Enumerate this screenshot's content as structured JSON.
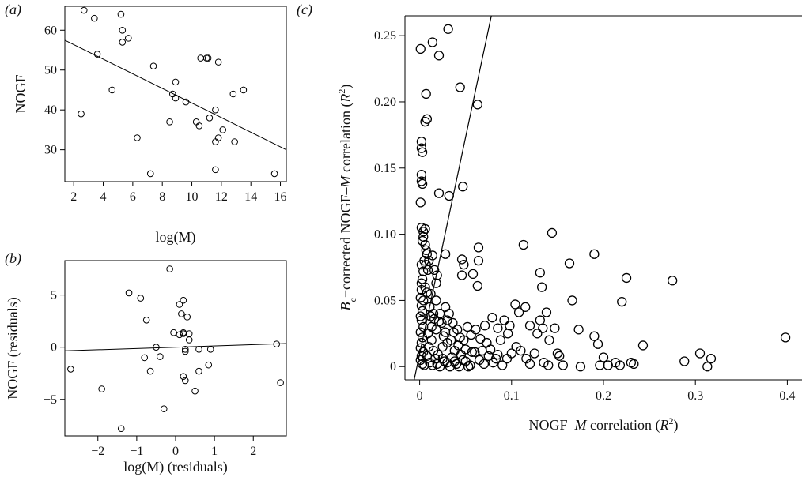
{
  "figure": {
    "panel_labels": {
      "a": "(a)",
      "b": "(b)",
      "c": "(c)"
    }
  },
  "chart_data": [
    {
      "id": "a",
      "type": "scatter",
      "xlabel": "log(M)",
      "ylabel": "NOGF",
      "xlim": [
        1.4,
        16.4
      ],
      "ylim": [
        22,
        66
      ],
      "xticks": [
        2,
        4,
        6,
        8,
        10,
        12,
        14,
        16
      ],
      "yticks": [
        30,
        40,
        50,
        60
      ],
      "grid": false,
      "points": [
        [
          2.7,
          65
        ],
        [
          3.4,
          63
        ],
        [
          3.6,
          54
        ],
        [
          2.5,
          39
        ],
        [
          4.6,
          45
        ],
        [
          5.2,
          64
        ],
        [
          5.3,
          60
        ],
        [
          5.3,
          57
        ],
        [
          5.7,
          58
        ],
        [
          6.3,
          33
        ],
        [
          7.2,
          24
        ],
        [
          7.4,
          51
        ],
        [
          8.5,
          37
        ],
        [
          8.7,
          44
        ],
        [
          8.9,
          47
        ],
        [
          8.9,
          43
        ],
        [
          9.6,
          42
        ],
        [
          10.3,
          37
        ],
        [
          10.5,
          36
        ],
        [
          10.6,
          53
        ],
        [
          11.0,
          53
        ],
        [
          11.1,
          53
        ],
        [
          11.2,
          38
        ],
        [
          11.6,
          40
        ],
        [
          11.6,
          32
        ],
        [
          11.8,
          33
        ],
        [
          11.8,
          52
        ],
        [
          12.1,
          35
        ],
        [
          11.6,
          25
        ],
        [
          12.8,
          44
        ],
        [
          12.9,
          32
        ],
        [
          13.5,
          45
        ],
        [
          15.6,
          24
        ]
      ],
      "fit_line": {
        "x": [
          1.4,
          16.4
        ],
        "y": [
          57.5,
          30.0
        ]
      }
    },
    {
      "id": "b",
      "type": "scatter",
      "xlabel": "log(M) (residuals)",
      "ylabel": "NOGF (residuals)",
      "xlim": [
        -2.85,
        2.85
      ],
      "ylim": [
        -8.5,
        8.3
      ],
      "xticks": [
        -2,
        -1,
        0,
        1,
        2
      ],
      "xtick_labels": [
        "−2",
        "−1",
        "0",
        "1",
        "2"
      ],
      "yticks": [
        -5,
        0,
        5
      ],
      "ytick_labels": [
        "−5",
        "0",
        "5"
      ],
      "grid": false,
      "points": [
        [
          -2.7,
          -2.1
        ],
        [
          -1.9,
          -4.0
        ],
        [
          -1.4,
          -7.8
        ],
        [
          -1.2,
          5.2
        ],
        [
          -0.9,
          4.7
        ],
        [
          -0.75,
          2.6
        ],
        [
          -0.8,
          -1.0
        ],
        [
          -0.65,
          -2.3
        ],
        [
          -0.4,
          -0.9
        ],
        [
          -0.5,
          0.0
        ],
        [
          -0.3,
          -5.9
        ],
        [
          -0.15,
          7.5
        ],
        [
          -0.05,
          1.4
        ],
        [
          0.1,
          1.2
        ],
        [
          0.1,
          4.1
        ],
        [
          0.15,
          3.2
        ],
        [
          0.2,
          1.4
        ],
        [
          0.2,
          4.5
        ],
        [
          0.2,
          1.3
        ],
        [
          0.25,
          -0.4
        ],
        [
          0.25,
          -0.2
        ],
        [
          0.2,
          -2.8
        ],
        [
          0.25,
          -3.2
        ],
        [
          0.3,
          2.9
        ],
        [
          0.35,
          0.7
        ],
        [
          0.35,
          1.3
        ],
        [
          0.5,
          -4.2
        ],
        [
          0.6,
          -2.3
        ],
        [
          0.6,
          -0.2
        ],
        [
          0.85,
          -1.7
        ],
        [
          0.9,
          -0.2
        ],
        [
          2.6,
          0.3
        ],
        [
          2.7,
          -3.4
        ]
      ],
      "fit_line": {
        "x": [
          -2.85,
          2.85
        ],
        "y": [
          -0.35,
          0.35
        ]
      }
    },
    {
      "id": "c",
      "type": "scatter",
      "xlabel_parts": [
        "NOGF–",
        "M",
        " correlation (",
        "R",
        "2",
        ")"
      ],
      "ylabel_parts": [
        "B",
        "c",
        "−corrected NOGF–",
        "M",
        " correlation (",
        "R",
        "2",
        ")"
      ],
      "xlim": [
        -0.016,
        0.416
      ],
      "ylim": [
        -0.01,
        0.265
      ],
      "xticks": [
        0,
        0.1,
        0.2,
        0.3,
        0.4
      ],
      "xtick_labels": [
        "0",
        "0.1",
        "0.2",
        "0.3",
        "0.4"
      ],
      "yticks": [
        0,
        0.05,
        0.1,
        0.15,
        0.2,
        0.25
      ],
      "ytick_labels": [
        "0",
        "0.05",
        "0.10",
        "0.15",
        "0.20",
        "0.25"
      ],
      "grid": false,
      "identity_line": {
        "x": [
          -0.006,
          0.078
        ],
        "y": [
          -0.01,
          0.265
        ]
      },
      "points": [
        [
          0.001,
          0.24
        ],
        [
          0.002,
          0.17
        ],
        [
          0.002,
          0.165
        ],
        [
          0.003,
          0.162
        ],
        [
          0.002,
          0.145
        ],
        [
          0.002,
          0.14
        ],
        [
          0.003,
          0.138
        ],
        [
          0.001,
          0.124
        ],
        [
          0.002,
          0.105
        ],
        [
          0.004,
          0.102
        ],
        [
          0.006,
          0.104
        ],
        [
          0.004,
          0.098
        ],
        [
          0.003,
          0.095
        ],
        [
          0.006,
          0.092
        ],
        [
          0.007,
          0.088
        ],
        [
          0.008,
          0.085
        ],
        [
          0.005,
          0.08
        ],
        [
          0.007,
          0.077
        ],
        [
          0.002,
          0.077
        ],
        [
          0.004,
          0.072
        ],
        [
          0.01,
          0.08
        ],
        [
          0.009,
          0.073
        ],
        [
          0.003,
          0.066
        ],
        [
          0.002,
          0.063
        ],
        [
          0.006,
          0.06
        ],
        [
          0.002,
          0.058
        ],
        [
          0.008,
          0.056
        ],
        [
          0.001,
          0.052
        ],
        [
          0.004,
          0.05
        ],
        [
          0.002,
          0.046
        ],
        [
          0.003,
          0.042
        ],
        [
          0.001,
          0.038
        ],
        [
          0.002,
          0.035
        ],
        [
          0.004,
          0.03
        ],
        [
          0.001,
          0.026
        ],
        [
          0.003,
          0.022
        ],
        [
          0.002,
          0.018
        ],
        [
          0.001,
          0.014
        ],
        [
          0.004,
          0.011
        ],
        [
          0.002,
          0.008
        ],
        [
          0.001,
          0.005
        ],
        [
          0.003,
          0.002
        ],
        [
          0.005,
          0.001
        ],
        [
          0.006,
          0.185
        ],
        [
          0.008,
          0.187
        ],
        [
          0.007,
          0.206
        ],
        [
          0.014,
          0.245
        ],
        [
          0.021,
          0.235
        ],
        [
          0.031,
          0.255
        ],
        [
          0.044,
          0.211
        ],
        [
          0.021,
          0.131
        ],
        [
          0.032,
          0.129
        ],
        [
          0.047,
          0.136
        ],
        [
          0.063,
          0.198
        ],
        [
          0.014,
          0.084
        ],
        [
          0.028,
          0.085
        ],
        [
          0.016,
          0.073
        ],
        [
          0.019,
          0.069
        ],
        [
          0.018,
          0.063
        ],
        [
          0.046,
          0.081
        ],
        [
          0.048,
          0.077
        ],
        [
          0.046,
          0.069
        ],
        [
          0.064,
          0.09
        ],
        [
          0.064,
          0.08
        ],
        [
          0.058,
          0.07
        ],
        [
          0.063,
          0.061
        ],
        [
          0.012,
          0.055
        ],
        [
          0.018,
          0.05
        ],
        [
          0.011,
          0.045
        ],
        [
          0.022,
          0.04
        ],
        [
          0.016,
          0.036
        ],
        [
          0.021,
          0.034
        ],
        [
          0.024,
          0.033
        ],
        [
          0.013,
          0.03
        ],
        [
          0.018,
          0.028
        ],
        [
          0.028,
          0.026
        ],
        [
          0.032,
          0.04
        ],
        [
          0.036,
          0.033
        ],
        [
          0.041,
          0.028
        ],
        [
          0.044,
          0.022
        ],
        [
          0.048,
          0.02
        ],
        [
          0.052,
          0.03
        ],
        [
          0.056,
          0.024
        ],
        [
          0.061,
          0.028
        ],
        [
          0.066,
          0.021
        ],
        [
          0.073,
          0.018
        ],
        [
          0.071,
          0.031
        ],
        [
          0.079,
          0.037
        ],
        [
          0.085,
          0.029
        ],
        [
          0.092,
          0.035
        ],
        [
          0.098,
          0.031
        ],
        [
          0.104,
          0.047
        ],
        [
          0.108,
          0.041
        ],
        [
          0.096,
          0.025
        ],
        [
          0.088,
          0.02
        ],
        [
          0.113,
          0.092
        ],
        [
          0.115,
          0.045
        ],
        [
          0.12,
          0.031
        ],
        [
          0.128,
          0.025
        ],
        [
          0.131,
          0.071
        ],
        [
          0.133,
          0.06
        ],
        [
          0.131,
          0.035
        ],
        [
          0.134,
          0.029
        ],
        [
          0.138,
          0.041
        ],
        [
          0.141,
          0.02
        ],
        [
          0.144,
          0.101
        ],
        [
          0.147,
          0.029
        ],
        [
          0.15,
          0.01
        ],
        [
          0.152,
          0.008
        ],
        [
          0.163,
          0.078
        ],
        [
          0.166,
          0.05
        ],
        [
          0.173,
          0.028
        ],
        [
          0.19,
          0.085
        ],
        [
          0.19,
          0.023
        ],
        [
          0.194,
          0.017
        ],
        [
          0.22,
          0.049
        ],
        [
          0.225,
          0.067
        ],
        [
          0.243,
          0.016
        ],
        [
          0.275,
          0.065
        ],
        [
          0.288,
          0.004
        ],
        [
          0.305,
          0.01
        ],
        [
          0.317,
          0.006
        ],
        [
          0.313,
          0.0
        ],
        [
          0.398,
          0.022
        ],
        [
          0.015,
          0.012
        ],
        [
          0.02,
          0.009
        ],
        [
          0.025,
          0.006
        ],
        [
          0.03,
          0.003
        ],
        [
          0.035,
          0.007
        ],
        [
          0.04,
          0.002
        ],
        [
          0.045,
          0.009
        ],
        [
          0.05,
          0.004
        ],
        [
          0.055,
          0.001
        ],
        [
          0.06,
          0.011
        ],
        [
          0.065,
          0.005
        ],
        [
          0.07,
          0.002
        ],
        [
          0.075,
          0.008
        ],
        [
          0.08,
          0.003
        ],
        [
          0.085,
          0.009
        ],
        [
          0.09,
          0.001
        ],
        [
          0.095,
          0.006
        ],
        [
          0.1,
          0.01
        ],
        [
          0.105,
          0.015
        ],
        [
          0.11,
          0.012
        ],
        [
          0.116,
          0.006
        ],
        [
          0.12,
          0.002
        ],
        [
          0.125,
          0.01
        ],
        [
          0.135,
          0.003
        ],
        [
          0.14,
          0.001
        ],
        [
          0.156,
          0.001
        ],
        [
          0.175,
          0.0
        ],
        [
          0.196,
          0.001
        ],
        [
          0.205,
          0.001
        ],
        [
          0.213,
          0.003
        ],
        [
          0.218,
          0.001
        ],
        [
          0.23,
          0.003
        ],
        [
          0.2,
          0.007
        ],
        [
          0.233,
          0.002
        ],
        [
          0.013,
          0.02
        ],
        [
          0.025,
          0.015
        ],
        [
          0.03,
          0.018
        ],
        [
          0.038,
          0.012
        ],
        [
          0.042,
          0.016
        ],
        [
          0.05,
          0.013
        ],
        [
          0.057,
          0.011
        ],
        [
          0.068,
          0.012
        ],
        [
          0.077,
          0.013
        ],
        [
          0.083,
          0.006
        ],
        [
          0.011,
          0.003
        ],
        [
          0.014,
          0.001
        ],
        [
          0.017,
          0.006
        ],
        [
          0.019,
          0.002
        ],
        [
          0.022,
          0.0
        ],
        [
          0.027,
          0.004
        ],
        [
          0.033,
          0.0
        ],
        [
          0.038,
          0.004
        ],
        [
          0.043,
          0.0
        ],
        [
          0.047,
          0.005
        ],
        [
          0.053,
          0.0
        ],
        [
          0.009,
          0.025
        ],
        [
          0.012,
          0.038
        ],
        [
          0.01,
          0.015
        ],
        [
          0.008,
          0.008
        ],
        [
          0.015,
          0.04
        ],
        [
          0.028,
          0.045
        ],
        [
          0.03,
          0.035
        ],
        [
          0.034,
          0.02
        ],
        [
          0.037,
          0.026
        ],
        [
          0.026,
          0.023
        ]
      ]
    }
  ]
}
